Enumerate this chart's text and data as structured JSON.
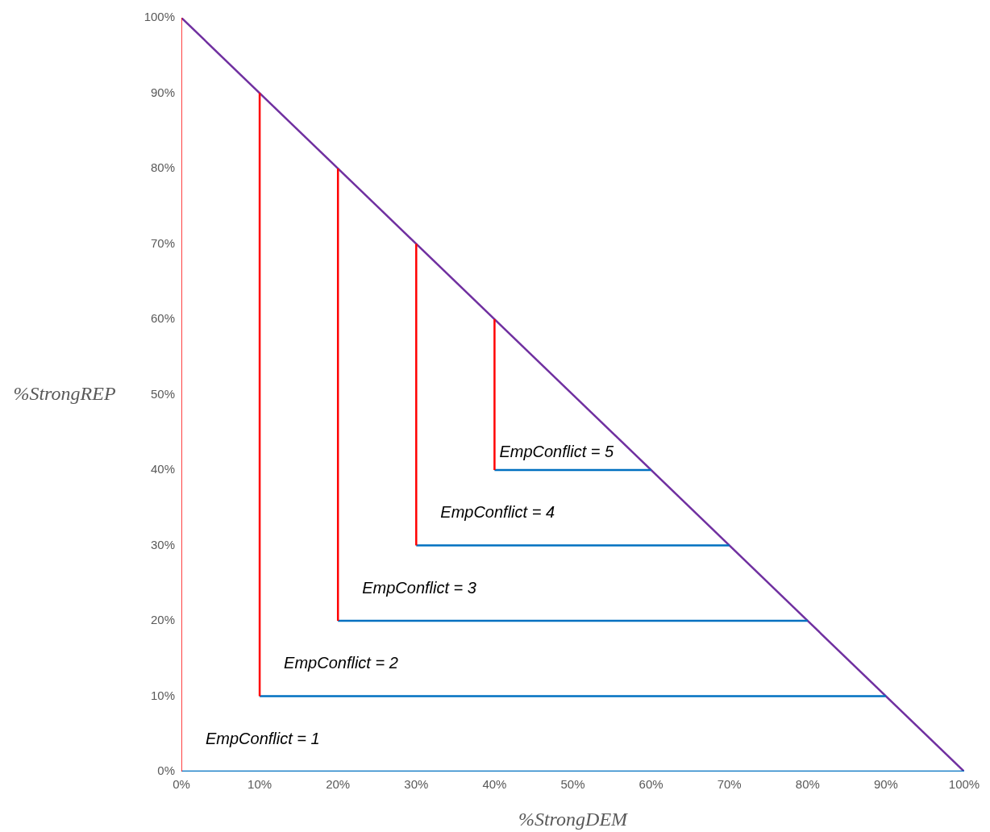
{
  "chart_data": {
    "type": "line",
    "xlabel": "%StrongDEM",
    "ylabel": "%StrongREP",
    "xlim": [
      0,
      100
    ],
    "ylim": [
      0,
      100
    ],
    "xticks": [
      {
        "value": 0,
        "label": "0%"
      },
      {
        "value": 10,
        "label": "10%"
      },
      {
        "value": 20,
        "label": "20%"
      },
      {
        "value": 30,
        "label": "30%"
      },
      {
        "value": 40,
        "label": "40%"
      },
      {
        "value": 50,
        "label": "50%"
      },
      {
        "value": 60,
        "label": "60%"
      },
      {
        "value": 70,
        "label": "70%"
      },
      {
        "value": 80,
        "label": "80%"
      },
      {
        "value": 90,
        "label": "90%"
      },
      {
        "value": 100,
        "label": "100%"
      }
    ],
    "yticks": [
      {
        "value": 0,
        "label": "0%"
      },
      {
        "value": 10,
        "label": "10%"
      },
      {
        "value": 20,
        "label": "20%"
      },
      {
        "value": 30,
        "label": "30%"
      },
      {
        "value": 40,
        "label": "40%"
      },
      {
        "value": 50,
        "label": "50%"
      },
      {
        "value": 60,
        "label": "60%"
      },
      {
        "value": 70,
        "label": "70%"
      },
      {
        "value": 80,
        "label": "80%"
      },
      {
        "value": 90,
        "label": "90%"
      },
      {
        "value": 100,
        "label": "100%"
      }
    ],
    "grid": false,
    "legend": false,
    "marker": "none",
    "line_style": "solid",
    "series": [
      {
        "color": "#ff0000",
        "x": [
          0,
          0
        ],
        "values": [
          0,
          100
        ]
      },
      {
        "color": "#ff0000",
        "x": [
          10,
          10
        ],
        "values": [
          10,
          90
        ]
      },
      {
        "color": "#ff0000",
        "x": [
          20,
          20
        ],
        "values": [
          20,
          80
        ]
      },
      {
        "color": "#ff0000",
        "x": [
          30,
          30
        ],
        "values": [
          30,
          70
        ]
      },
      {
        "color": "#ff0000",
        "x": [
          40,
          40
        ],
        "values": [
          40,
          60
        ]
      },
      {
        "color": "#0070c0",
        "x": [
          0,
          100
        ],
        "values": [
          0,
          0
        ]
      },
      {
        "color": "#0070c0",
        "x": [
          10,
          90
        ],
        "values": [
          10,
          10
        ]
      },
      {
        "color": "#0070c0",
        "x": [
          20,
          80
        ],
        "values": [
          20,
          20
        ]
      },
      {
        "color": "#0070c0",
        "x": [
          30,
          70
        ],
        "values": [
          30,
          30
        ]
      },
      {
        "color": "#0070c0",
        "x": [
          40,
          60
        ],
        "values": [
          40,
          40
        ]
      },
      {
        "color": "#7030a0",
        "x": [
          0,
          100
        ],
        "values": [
          100,
          0
        ]
      }
    ],
    "annotations": [
      "EmpConflict = 1",
      "EmpConflict = 2",
      "EmpConflict = 3",
      "EmpConflict = 4",
      "EmpConflict = 5"
    ]
  }
}
